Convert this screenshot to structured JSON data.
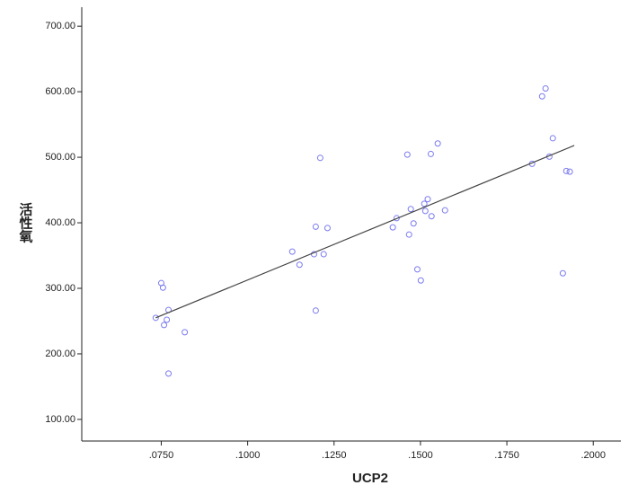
{
  "chart_data": {
    "type": "scatter",
    "x_label": "UCP2",
    "y_label": "活性氧",
    "xlim": [
      0.052,
      0.208
    ],
    "ylim": [
      67,
      729
    ],
    "xticks": [
      {
        "value": 0.075,
        "label": ".0750"
      },
      {
        "value": 0.1,
        "label": ".1000"
      },
      {
        "value": 0.125,
        "label": ".1250"
      },
      {
        "value": 0.15,
        "label": ".1500"
      },
      {
        "value": 0.175,
        "label": ".1750"
      },
      {
        "value": 0.2,
        "label": ".2000"
      }
    ],
    "yticks": [
      {
        "value": 100,
        "label": "100.00"
      },
      {
        "value": 200,
        "label": "200.00"
      },
      {
        "value": 300,
        "label": "300.00"
      },
      {
        "value": 400,
        "label": "400.00"
      },
      {
        "value": 500,
        "label": "500.00"
      },
      {
        "value": 600,
        "label": "600.00"
      },
      {
        "value": 700,
        "label": "700.00"
      }
    ],
    "color": "#7b7bf0",
    "line_color": "#444444",
    "x": [
      0.0734,
      0.075,
      0.0755,
      0.0771,
      0.0766,
      0.0758,
      0.0771,
      0.0818,
      0.1129,
      0.115,
      0.1192,
      0.1197,
      0.1197,
      0.121,
      0.122,
      0.1231,
      0.142,
      0.1431,
      0.1462,
      0.1467,
      0.1472,
      0.148,
      0.1491,
      0.1501,
      0.1511,
      0.1514,
      0.1521,
      0.153,
      0.1532,
      0.155,
      0.1571,
      0.1823,
      0.1852,
      0.1862,
      0.1873,
      0.1883,
      0.1912,
      0.1922,
      0.1932
    ],
    "values": [
      255,
      308,
      301,
      267,
      252,
      244,
      170,
      233,
      356,
      336,
      352,
      394,
      266,
      499,
      352,
      392,
      393,
      407,
      504,
      382,
      421,
      399,
      329,
      312,
      429,
      418,
      436,
      505,
      410,
      521,
      419,
      490,
      593,
      605,
      501,
      529,
      323,
      479,
      478
    ],
    "fit": {
      "x": [
        0.0734,
        0.1945
      ],
      "y": [
        255,
        518
      ]
    }
  }
}
